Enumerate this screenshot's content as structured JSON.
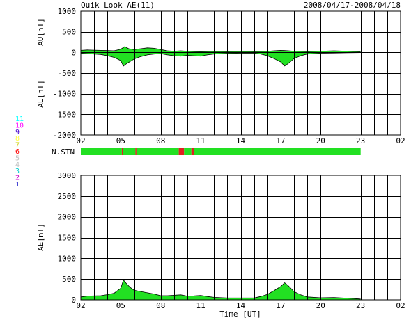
{
  "title_left": "Quik Look AE(11)",
  "title_right": "2008/04/17-2008/04/18",
  "colors": {
    "fill": "#22e022",
    "grid": "#000000",
    "missing": "#e02020"
  },
  "chart_data": [
    {
      "type": "area",
      "name": "AU / AL",
      "ylabel_upper": "AU[nT]",
      "ylabel_lower": "AL[nT]",
      "ylim": [
        -2000,
        1000
      ],
      "yticks": [
        1000,
        500,
        0,
        -500,
        -1000,
        -1500,
        -2000
      ],
      "xlim": [
        2,
        26
      ],
      "xtick_labels": [
        "02",
        "05",
        "08",
        "11",
        "14",
        "17",
        "20",
        "23",
        "02"
      ],
      "data_end_hour": 23,
      "au": {
        "x": [
          2,
          2.5,
          3,
          3.5,
          4,
          4.5,
          5,
          5.3,
          5.6,
          6,
          6.5,
          7,
          7.5,
          8,
          8.5,
          9,
          9.5,
          10,
          10.5,
          11,
          11.5,
          12,
          13,
          14,
          15,
          16,
          16.5,
          17,
          17.3,
          17.6,
          18,
          18.5,
          19,
          20,
          21,
          22,
          23
        ],
        "y": [
          50,
          60,
          55,
          50,
          45,
          40,
          80,
          140,
          90,
          70,
          90,
          110,
          100,
          70,
          40,
          30,
          40,
          30,
          20,
          15,
          20,
          25,
          20,
          25,
          20,
          25,
          40,
          50,
          45,
          40,
          30,
          25,
          20,
          30,
          40,
          30,
          15
        ]
      },
      "al": {
        "x": [
          2,
          2.5,
          3,
          3.5,
          4,
          4.5,
          5,
          5.2,
          5.4,
          5.7,
          6,
          6.5,
          7,
          7.5,
          8,
          8.5,
          9,
          9.5,
          10,
          10.5,
          11,
          11.5,
          12,
          13,
          14,
          15,
          15.5,
          16,
          16.5,
          17,
          17.3,
          17.6,
          18,
          18.5,
          19,
          20,
          21,
          22,
          23
        ],
        "y": [
          -20,
          -30,
          -40,
          -50,
          -80,
          -120,
          -200,
          -330,
          -280,
          -220,
          -160,
          -100,
          -60,
          -40,
          -30,
          -60,
          -80,
          -90,
          -70,
          -80,
          -90,
          -60,
          -40,
          -25,
          -20,
          -20,
          -40,
          -80,
          -150,
          -230,
          -330,
          -260,
          -150,
          -80,
          -40,
          -20,
          -15,
          -10,
          -5
        ]
      }
    },
    {
      "type": "bar",
      "name": "N.STN",
      "label": "N.STN",
      "xlim": [
        2,
        26
      ],
      "data_end_hour": 23,
      "legend_values": [
        "11",
        "10",
        "9",
        "8",
        "7",
        "6",
        "5",
        "4",
        "3",
        "2",
        "1"
      ],
      "legend_colors": [
        "#00ffff",
        "#ff00ff",
        "#4400cc",
        "#ffff44",
        "#cccc00",
        "#ff0000",
        "#c0c0c0",
        "#c0c0c0",
        "#00cccc",
        "#cc00cc",
        "#2222cc"
      ],
      "segments": [
        {
          "start": 2,
          "end": 5.08,
          "stations": 11
        },
        {
          "start": 5.08,
          "end": 5.16,
          "stations": 10
        },
        {
          "start": 5.16,
          "end": 6.1,
          "stations": 11
        },
        {
          "start": 6.1,
          "end": 6.18,
          "stations": 10
        },
        {
          "start": 6.18,
          "end": 9.35,
          "stations": 11
        },
        {
          "start": 9.35,
          "end": 9.75,
          "stations": 10
        },
        {
          "start": 9.75,
          "end": 10.3,
          "stations": 11
        },
        {
          "start": 10.3,
          "end": 10.5,
          "stations": 10
        },
        {
          "start": 10.5,
          "end": 23,
          "stations": 11
        }
      ]
    },
    {
      "type": "area",
      "name": "AE",
      "ylabel": "AE[nT]",
      "xlabel": "Time [UT]",
      "ylim": [
        0,
        3000
      ],
      "yticks": [
        3000,
        2500,
        2000,
        1500,
        1000,
        500,
        0
      ],
      "xlim": [
        2,
        26
      ],
      "xtick_labels": [
        "02",
        "05",
        "08",
        "11",
        "14",
        "17",
        "20",
        "23",
        "02"
      ],
      "data_end_hour": 23,
      "ae": {
        "x": [
          2,
          2.5,
          3,
          3.5,
          4,
          4.5,
          5,
          5.2,
          5.4,
          5.7,
          6,
          6.5,
          7,
          7.5,
          8,
          8.5,
          9,
          9.5,
          10,
          10.5,
          11,
          11.5,
          12,
          13,
          14,
          15,
          15.5,
          16,
          16.5,
          17,
          17.3,
          17.6,
          18,
          18.5,
          19,
          20,
          21,
          22,
          23
        ],
        "y": [
          70,
          90,
          95,
          100,
          125,
          160,
          280,
          480,
          400,
          300,
          230,
          200,
          170,
          140,
          100,
          100,
          110,
          120,
          90,
          95,
          105,
          80,
          60,
          45,
          45,
          45,
          80,
          130,
          220,
          320,
          410,
          330,
          200,
          120,
          70,
          50,
          55,
          40,
          20
        ]
      }
    }
  ]
}
